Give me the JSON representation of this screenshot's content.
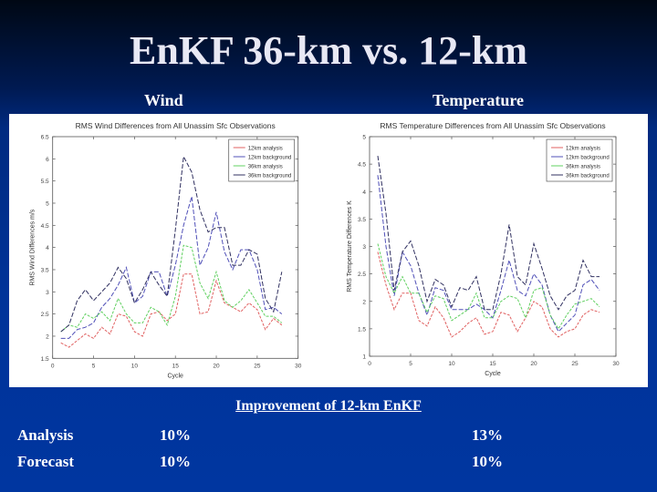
{
  "slide": {
    "title": "EnKF 36-km vs. 12-km",
    "left_label": "Wind",
    "right_label": "Temperature",
    "improvement_heading": "Improvement of 12-km EnKF",
    "rows": [
      {
        "label": "Analysis",
        "wind": "10%",
        "temperature": "13%"
      },
      {
        "label": "Forecast",
        "wind": "10%",
        "temperature": "10%"
      }
    ]
  },
  "colors": {
    "12km_analysis": "#e06060",
    "12km_background": "#5050b8",
    "36km_analysis": "#60d060",
    "36km_background": "#303060"
  },
  "chart_data": [
    {
      "type": "line",
      "title": "RMS Wind Differences from All Unassim Sfc Observations",
      "xlabel": "Cycle",
      "ylabel": "RMS Wind Differences m/s",
      "xlim": [
        0,
        30
      ],
      "ylim": [
        1.5,
        6.5
      ],
      "xticks": [
        0,
        5,
        10,
        15,
        20,
        25,
        30
      ],
      "yticks": [
        1.5,
        2,
        2.5,
        3,
        3.5,
        4,
        4.5,
        5,
        5.5,
        6,
        6.5
      ],
      "grid": false,
      "legend_position": "upper right",
      "x": [
        1,
        2,
        3,
        4,
        5,
        6,
        7,
        8,
        9,
        10,
        11,
        12,
        13,
        14,
        15,
        16,
        17,
        18,
        19,
        20,
        21,
        22,
        23,
        24,
        25,
        26,
        27,
        28
      ],
      "series": [
        {
          "name": "12km analysis",
          "color_key": "12km_analysis",
          "values": [
            1.85,
            1.75,
            1.9,
            2.05,
            1.95,
            2.2,
            2.05,
            2.5,
            2.45,
            2.1,
            2.0,
            2.5,
            2.55,
            2.35,
            2.5,
            3.4,
            3.4,
            2.5,
            2.55,
            3.25,
            2.75,
            2.65,
            2.55,
            2.75,
            2.6,
            2.15,
            2.4,
            2.25
          ]
        },
        {
          "name": "12km background",
          "color_key": "12km_background",
          "values": [
            1.95,
            1.95,
            2.15,
            2.2,
            2.3,
            2.65,
            2.85,
            3.15,
            3.55,
            2.75,
            2.9,
            3.45,
            3.45,
            2.9,
            3.6,
            4.5,
            5.15,
            3.6,
            4.0,
            4.8,
            3.9,
            3.5,
            3.95,
            3.95,
            3.5,
            2.6,
            2.65,
            2.5
          ]
        },
        {
          "name": "36km analysis",
          "color_key": "36km_analysis",
          "values": [
            2.1,
            2.25,
            2.2,
            2.5,
            2.4,
            2.55,
            2.35,
            2.85,
            2.5,
            2.3,
            2.3,
            2.65,
            2.55,
            2.25,
            2.9,
            4.05,
            4.0,
            3.2,
            2.85,
            3.45,
            2.8,
            2.65,
            2.8,
            3.05,
            2.75,
            2.45,
            2.45,
            2.3
          ]
        },
        {
          "name": "36km background",
          "color_key": "36km_background",
          "values": [
            2.1,
            2.25,
            2.8,
            3.05,
            2.8,
            3.0,
            3.2,
            3.55,
            3.3,
            2.75,
            3.05,
            3.45,
            3.15,
            2.9,
            4.4,
            6.05,
            5.7,
            4.85,
            4.35,
            4.45,
            4.45,
            3.6,
            3.6,
            3.95,
            3.85,
            2.85,
            2.55,
            3.45
          ]
        }
      ]
    },
    {
      "type": "line",
      "title": "RMS Temperature Differences from All Unassim Sfc Observations",
      "xlabel": "Cycle",
      "ylabel": "RMS Temperature Differences K",
      "xlim": [
        0,
        30
      ],
      "ylim": [
        1,
        5
      ],
      "xticks": [
        0,
        5,
        10,
        15,
        20,
        25,
        30
      ],
      "yticks": [
        1,
        1.5,
        2,
        2.5,
        3,
        3.5,
        4,
        4.5,
        5
      ],
      "grid": false,
      "legend_position": "upper right",
      "x": [
        1,
        2,
        3,
        4,
        5,
        6,
        7,
        8,
        9,
        10,
        11,
        12,
        13,
        14,
        15,
        16,
        17,
        18,
        19,
        20,
        21,
        22,
        23,
        24,
        25,
        26,
        27,
        28
      ],
      "series": [
        {
          "name": "12km analysis",
          "color_key": "12km_analysis",
          "values": [
            2.9,
            2.3,
            1.85,
            2.15,
            2.15,
            1.65,
            1.55,
            1.9,
            1.7,
            1.35,
            1.45,
            1.6,
            1.7,
            1.4,
            1.45,
            1.8,
            1.75,
            1.45,
            1.7,
            2.0,
            1.9,
            1.5,
            1.35,
            1.45,
            1.5,
            1.75,
            1.85,
            1.8
          ]
        },
        {
          "name": "12km background",
          "color_key": "12km_background",
          "values": [
            4.3,
            3.0,
            2.1,
            2.9,
            2.65,
            2.15,
            1.75,
            2.25,
            2.2,
            1.85,
            1.85,
            1.85,
            1.95,
            1.85,
            1.7,
            2.2,
            2.75,
            2.2,
            2.1,
            2.5,
            2.3,
            1.75,
            1.45,
            1.6,
            1.75,
            2.3,
            2.4,
            2.2
          ]
        },
        {
          "name": "36km analysis",
          "color_key": "36km_analysis",
          "values": [
            3.05,
            2.45,
            2.15,
            2.45,
            2.15,
            2.15,
            1.8,
            2.1,
            2.05,
            1.65,
            1.75,
            1.85,
            2.15,
            1.7,
            1.7,
            2.0,
            2.1,
            2.05,
            1.7,
            2.2,
            2.25,
            1.75,
            1.5,
            1.75,
            1.95,
            2.0,
            2.05,
            1.9
          ]
        },
        {
          "name": "36km background",
          "color_key": "36km_background",
          "values": [
            4.65,
            3.6,
            2.2,
            2.9,
            3.1,
            2.65,
            2.0,
            2.4,
            2.3,
            1.9,
            2.25,
            2.2,
            2.45,
            1.85,
            1.85,
            2.5,
            3.4,
            2.45,
            2.3,
            3.05,
            2.6,
            2.1,
            1.85,
            2.1,
            2.2,
            2.75,
            2.45,
            2.45
          ]
        }
      ]
    }
  ]
}
